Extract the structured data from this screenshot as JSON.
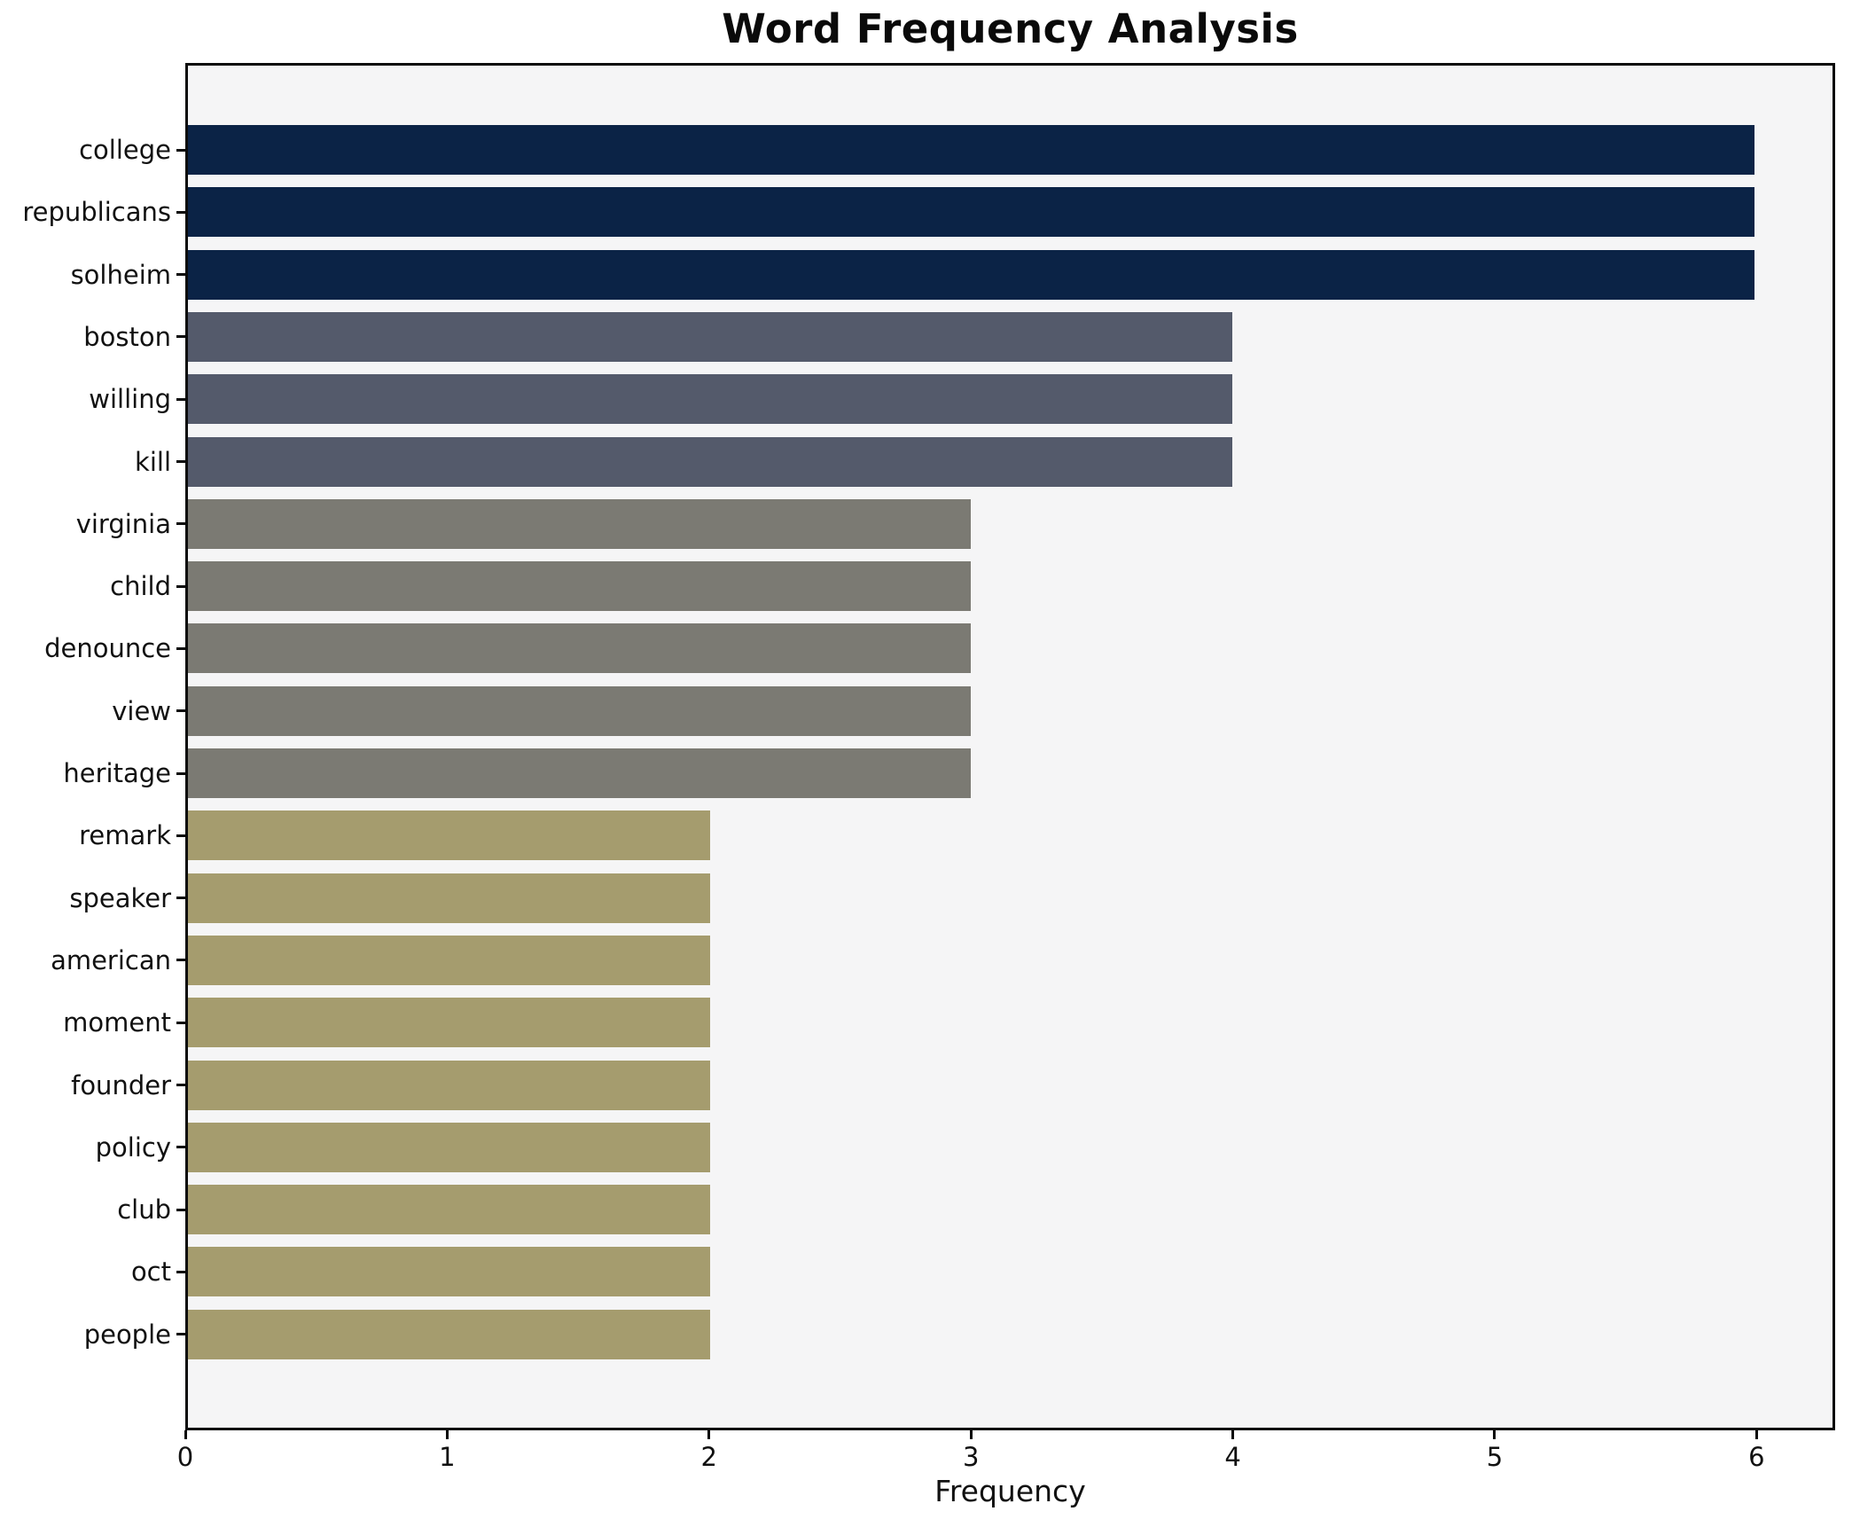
{
  "chart_data": {
    "type": "bar",
    "orientation": "horizontal",
    "title": "Word Frequency Analysis",
    "xlabel": "Frequency",
    "ylabel": "",
    "categories": [
      "college",
      "republicans",
      "solheim",
      "boston",
      "willing",
      "kill",
      "virginia",
      "child",
      "denounce",
      "view",
      "heritage",
      "remark",
      "speaker",
      "american",
      "moment",
      "founder",
      "policy",
      "club",
      "oct",
      "people"
    ],
    "values": [
      6,
      6,
      6,
      4,
      4,
      4,
      3,
      3,
      3,
      3,
      3,
      2,
      2,
      2,
      2,
      2,
      2,
      2,
      2,
      2
    ],
    "xticks": [
      0,
      1,
      2,
      3,
      4,
      5,
      6
    ],
    "xlim": [
      0,
      6.3
    ],
    "grid": false,
    "legend": null,
    "colors_by_value": {
      "6": "#0b2346",
      "4": "#545a6b",
      "3": "#7b7a73",
      "2": "#a59c6e"
    },
    "plot_background": "#f5f5f6",
    "outer_background": "#ffffff",
    "frame_color": "#0a0a0a"
  }
}
